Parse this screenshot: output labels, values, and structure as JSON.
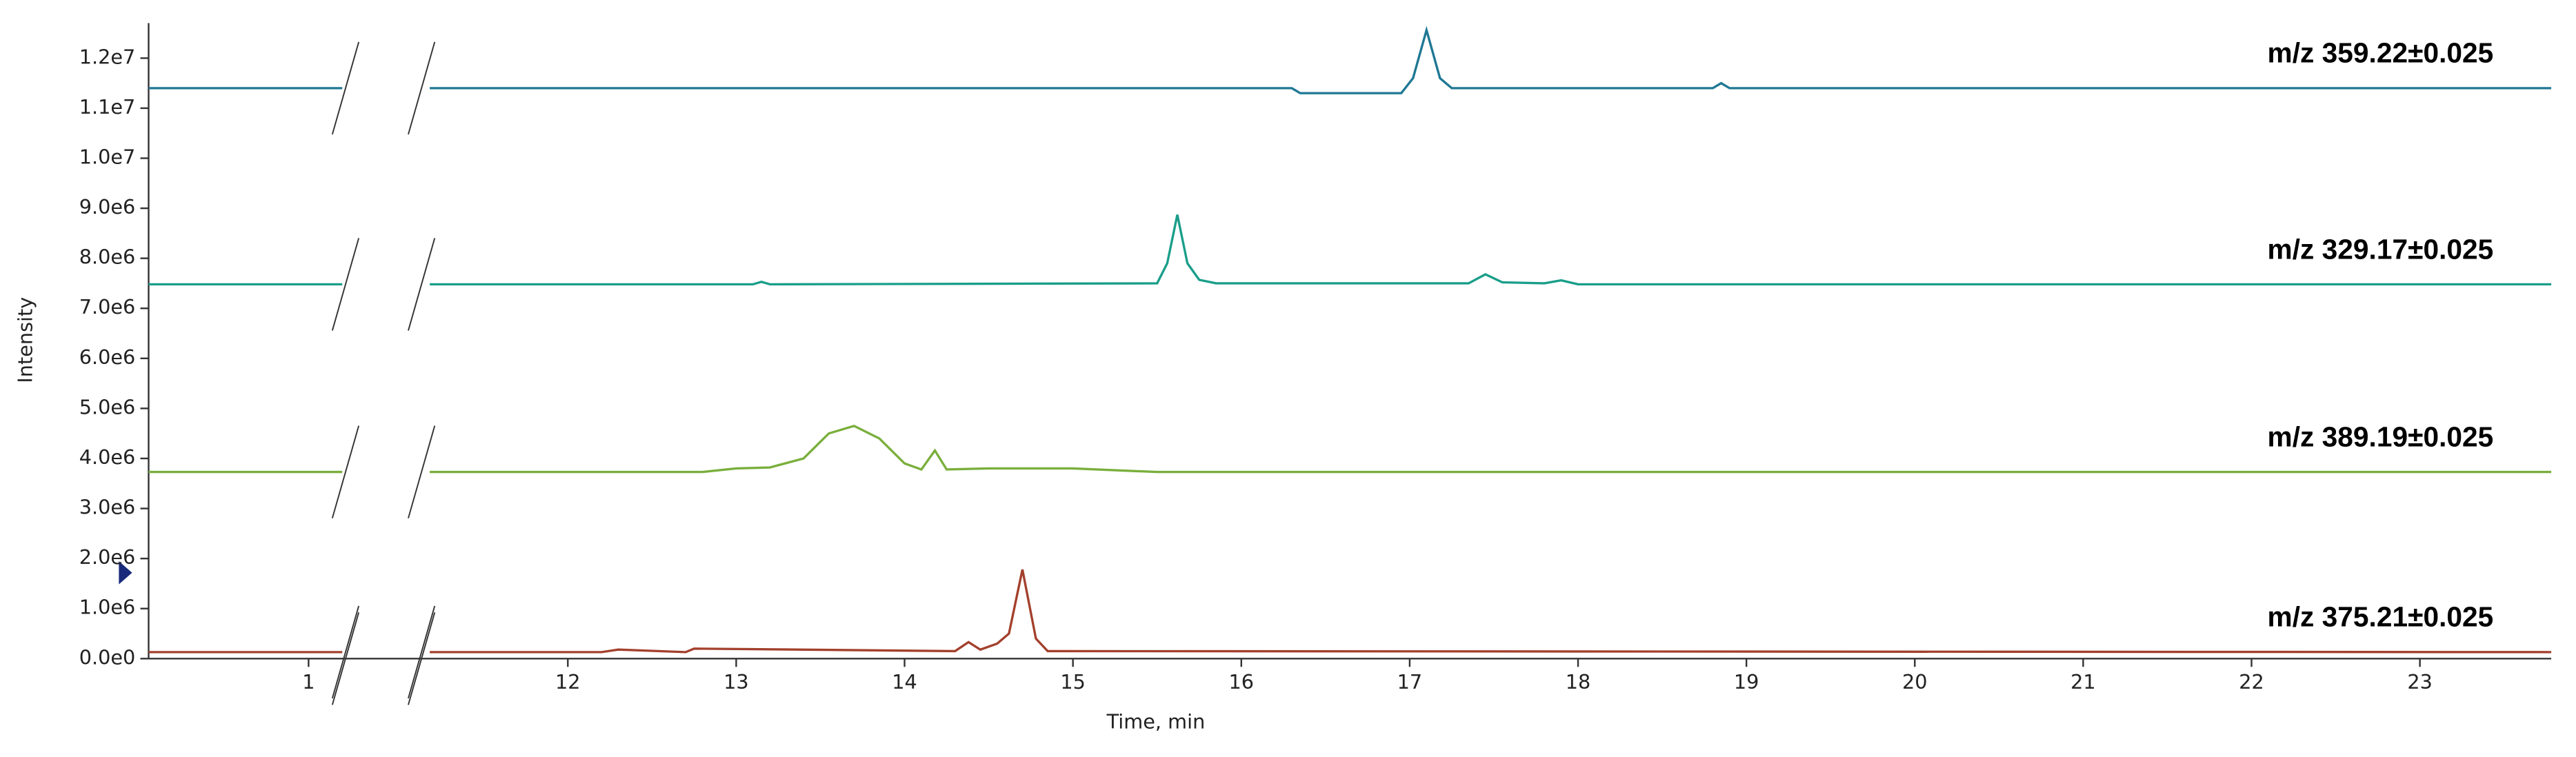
{
  "chart_data": {
    "type": "line",
    "xlabel": "Time, min",
    "ylabel": "Intensity",
    "xlim": [
      0.05,
      23.78
    ],
    "x_break": [
      1.2,
      11.18
    ],
    "xticks": [
      1,
      12,
      13,
      14,
      15,
      16,
      17,
      18,
      19,
      20,
      21,
      22,
      23
    ],
    "ylim": [
      0,
      12700000
    ],
    "yticks": [
      {
        "value": 0,
        "label": "0.0e0"
      },
      {
        "value": 1000000,
        "label": "1.0e6"
      },
      {
        "value": 2000000,
        "label": "2.0e6"
      },
      {
        "value": 3000000,
        "label": "3.0e6"
      },
      {
        "value": 4000000,
        "label": "4.0e6"
      },
      {
        "value": 5000000,
        "label": "5.0e6"
      },
      {
        "value": 6000000,
        "label": "6.0e6"
      },
      {
        "value": 7000000,
        "label": "7.0e6"
      },
      {
        "value": 8000000,
        "label": "8.0e6"
      },
      {
        "value": 9000000,
        "label": "9.0e6"
      },
      {
        "value": 10000000,
        "label": "1.0e7"
      },
      {
        "value": 11000000,
        "label": "1.1e7"
      },
      {
        "value": 12000000,
        "label": "1.2e7"
      }
    ],
    "series": [
      {
        "name": "m/z 359.22±0.025",
        "color": "#1f7894",
        "x": [
          0.05,
          1.2,
          11.18,
          16.3,
          16.35,
          16.95,
          17.02,
          17.1,
          17.18,
          17.25,
          18.8,
          18.85,
          18.9,
          23.78
        ],
        "values": [
          11400000,
          11400000,
          11400000,
          11400000,
          11300000,
          11300000,
          11600000,
          12560000,
          11600000,
          11400000,
          11400000,
          11500000,
          11400000,
          11400000
        ]
      },
      {
        "name": "m/z 329.17±0.025",
        "color": "#1a9e8a",
        "x": [
          0.05,
          1.2,
          11.18,
          13.1,
          13.15,
          13.2,
          15.5,
          15.56,
          15.62,
          15.68,
          15.75,
          15.85,
          17.35,
          17.45,
          17.55,
          17.8,
          17.9,
          18.0,
          23.78
        ],
        "values": [
          7480000,
          7480000,
          7480000,
          7480000,
          7530000,
          7480000,
          7500000,
          7900000,
          8870000,
          7900000,
          7570000,
          7500000,
          7500000,
          7680000,
          7520000,
          7500000,
          7560000,
          7480000,
          7480000
        ]
      },
      {
        "name": "m/z 389.19±0.025",
        "color": "#7aaf3c",
        "x": [
          0.05,
          1.2,
          11.18,
          12.8,
          13.0,
          13.2,
          13.4,
          13.55,
          13.7,
          13.85,
          14.0,
          14.1,
          14.18,
          14.25,
          14.5,
          15.0,
          15.5,
          23.78
        ],
        "values": [
          3730000,
          3730000,
          3730000,
          3730000,
          3800000,
          3820000,
          4000000,
          4500000,
          4650000,
          4400000,
          3900000,
          3780000,
          4160000,
          3780000,
          3800000,
          3800000,
          3730000,
          3730000
        ]
      },
      {
        "name": "m/z 375.21±0.025",
        "color": "#a3402c",
        "x": [
          0.05,
          1.2,
          11.18,
          12.2,
          12.3,
          12.7,
          12.75,
          14.3,
          14.38,
          14.45,
          14.55,
          14.62,
          14.7,
          14.78,
          14.85,
          23.78
        ],
        "values": [
          130000,
          130000,
          130000,
          130000,
          180000,
          130000,
          200000,
          150000,
          330000,
          180000,
          300000,
          500000,
          1780000,
          400000,
          150000,
          130000
        ]
      }
    ]
  }
}
